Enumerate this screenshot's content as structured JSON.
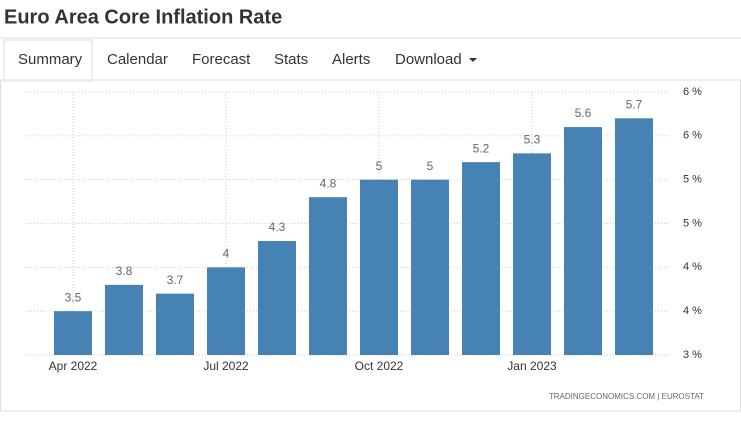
{
  "chart_data": {
    "type": "bar",
    "title": "Euro Area Core Inflation Rate",
    "tabs": [
      "Summary",
      "Calendar",
      "Forecast",
      "Stats",
      "Alerts",
      "Download"
    ],
    "categories": [
      "Apr 2022",
      null,
      null,
      "Jul 2022",
      null,
      null,
      "Oct 2022",
      null,
      null,
      "Jan 2023",
      null,
      null
    ],
    "values": [
      3.5,
      3.8,
      3.7,
      4,
      4.3,
      4.8,
      5,
      5,
      5.2,
      5.3,
      5.6,
      5.7
    ],
    "color": "#4682b4",
    "ylim": [
      3,
      6
    ],
    "yticks": [
      {
        "value": 3,
        "label": "3 %"
      },
      {
        "value": 3.5,
        "label": "4 %"
      },
      {
        "value": 4,
        "label": "4 %"
      },
      {
        "value": 4.5,
        "label": "5 %"
      },
      {
        "value": 5,
        "label": "5 %"
      },
      {
        "value": 5.5,
        "label": "6 %"
      },
      {
        "value": 6,
        "label": "6 %"
      }
    ],
    "grid": true,
    "source": "TRADINGECONOMICS.COM | EUROSTAT"
  }
}
